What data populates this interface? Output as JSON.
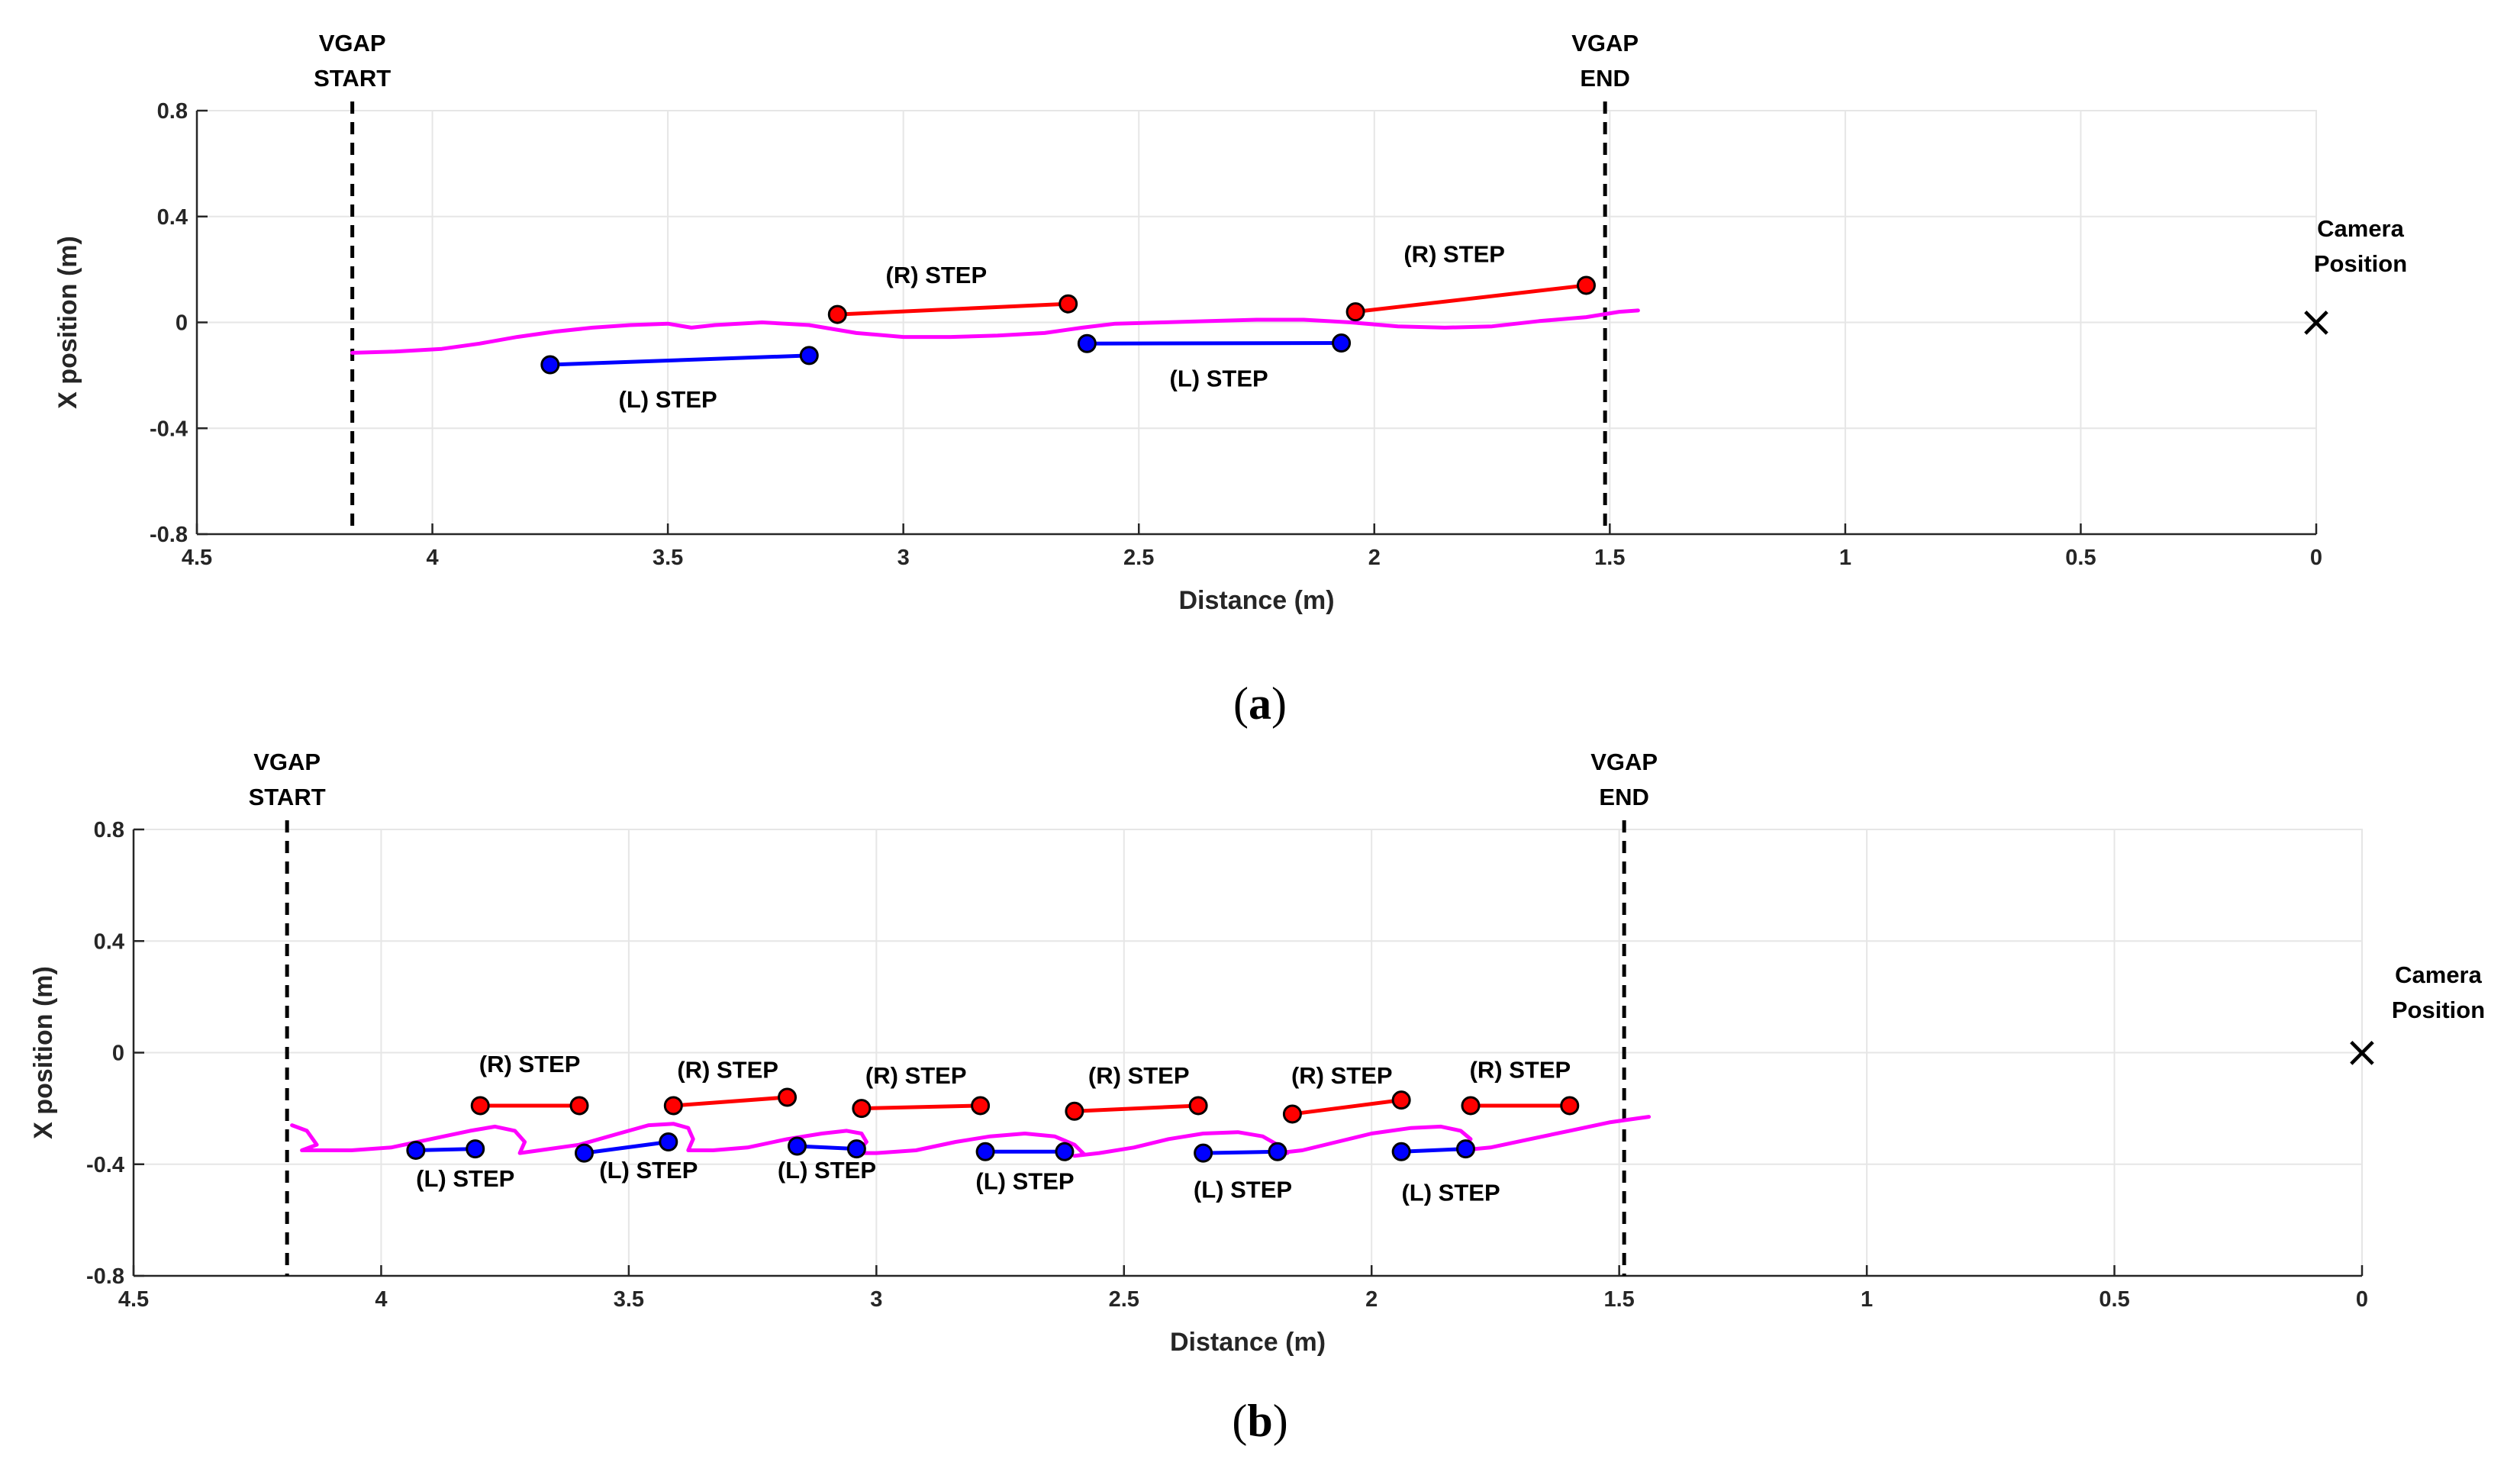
{
  "figure": {
    "colors": {
      "trajectory": "#ff00ff",
      "right_step": "#ff0000",
      "left_step": "#0000ff",
      "marker_edge": "#000000",
      "grid": "#e6e6e6",
      "axis": "#262626"
    },
    "panels": [
      {
        "caption_open": "(",
        "caption_letter": "a",
        "caption_close": ")",
        "chart_data": {
          "type": "line",
          "title": "",
          "xlabel": "Distance (m)",
          "ylabel": "X position (m)",
          "xlim": [
            4.5,
            0
          ],
          "x_reversed": true,
          "ylim": [
            -0.8,
            0.8
          ],
          "grid": true,
          "xticks": [
            4.5,
            4,
            3.5,
            3,
            2.5,
            2,
            1.5,
            1,
            0.5,
            0
          ],
          "xtick_labels": [
            "4.5",
            "4",
            "3.5",
            "3",
            "2.5",
            "2",
            "1.5",
            "1",
            "0.5",
            "0"
          ],
          "yticks": [
            0.8,
            0.4,
            0,
            -0.4,
            -0.8
          ],
          "ytick_labels": [
            "0.8",
            "0.4",
            "0",
            "-0.4",
            "-0.8"
          ],
          "vgap_start": {
            "x": 4.17,
            "line1": "VGAP",
            "line2": "START"
          },
          "vgap_end": {
            "x": 1.51,
            "line1": "VGAP",
            "line2": "END"
          },
          "camera": {
            "x": 0.0,
            "y": 0.0,
            "marker": "×",
            "line1": "Camera",
            "line2": "Position"
          },
          "trajectory": {
            "x": [
              4.17,
              4.08,
              3.98,
              3.9,
              3.82,
              3.74,
              3.66,
              3.58,
              3.5,
              3.45,
              3.4,
              3.3,
              3.2,
              3.1,
              3.0,
              2.9,
              2.8,
              2.7,
              2.62,
              2.55,
              2.45,
              2.35,
              2.25,
              2.15,
              2.05,
              1.95,
              1.85,
              1.75,
              1.65,
              1.55,
              1.48,
              1.44
            ],
            "y": [
              -0.115,
              -0.11,
              -0.1,
              -0.08,
              -0.055,
              -0.035,
              -0.02,
              -0.01,
              -0.005,
              -0.02,
              -0.01,
              0.0,
              -0.01,
              -0.04,
              -0.055,
              -0.055,
              -0.05,
              -0.04,
              -0.02,
              -0.005,
              0.0,
              0.005,
              0.01,
              0.01,
              0.0,
              -0.015,
              -0.02,
              -0.015,
              0.005,
              0.02,
              0.04,
              0.045
            ]
          },
          "right_steps": [
            {
              "x1": 3.14,
              "y1": 0.03,
              "x2": 2.65,
              "y2": 0.07,
              "label": "(R) STEP",
              "label_x": 2.93,
              "label_y": 0.18
            },
            {
              "x1": 2.04,
              "y1": 0.04,
              "x2": 1.55,
              "y2": 0.14,
              "label": "(R) STEP",
              "label_x": 1.83,
              "label_y": 0.26
            }
          ],
          "left_steps": [
            {
              "x1": 3.75,
              "y1": -0.16,
              "x2": 3.2,
              "y2": -0.125,
              "label": "(L) STEP",
              "label_x": 3.5,
              "label_y": -0.29
            },
            {
              "x1": 2.61,
              "y1": -0.08,
              "x2": 2.07,
              "y2": -0.078,
              "label": "(L) STEP",
              "label_x": 2.33,
              "label_y": -0.21
            }
          ]
        }
      },
      {
        "caption_open": "(",
        "caption_letter": "b",
        "caption_close": ")",
        "chart_data": {
          "type": "line",
          "title": "",
          "xlabel": "Distance (m)",
          "ylabel": "X position (m)",
          "xlim": [
            4.5,
            0
          ],
          "x_reversed": true,
          "ylim": [
            -0.8,
            0.8
          ],
          "grid": true,
          "xticks": [
            4.5,
            4,
            3.5,
            3,
            2.5,
            2,
            1.5,
            1,
            0.5,
            0
          ],
          "xtick_labels": [
            "4.5",
            "4",
            "3.5",
            "3",
            "2.5",
            "2",
            "1.5",
            "1",
            "0.5",
            "0"
          ],
          "yticks": [
            0.8,
            0.4,
            0,
            -0.4,
            -0.8
          ],
          "ytick_labels": [
            "0.8",
            "0.4",
            "0",
            "-0.4",
            "-0.8"
          ],
          "vgap_start": {
            "x": 4.19,
            "line1": "VGAP",
            "line2": "START"
          },
          "vgap_end": {
            "x": 1.49,
            "line1": "VGAP",
            "line2": "END"
          },
          "camera": {
            "x": 0.0,
            "y": 0.0,
            "marker": "×",
            "line1": "Camera",
            "line2": "Position"
          },
          "trajectory": {
            "x": [
              4.18,
              4.15,
              4.13,
              4.16,
              4.12,
              4.06,
              3.98,
              3.9,
              3.82,
              3.77,
              3.73,
              3.71,
              3.72,
              3.68,
              3.6,
              3.52,
              3.46,
              3.41,
              3.38,
              3.37,
              3.38,
              3.33,
              3.26,
              3.18,
              3.11,
              3.06,
              3.03,
              3.02,
              3.04,
              3.0,
              2.92,
              2.84,
              2.77,
              2.7,
              2.64,
              2.6,
              2.58,
              2.6,
              2.55,
              2.48,
              2.41,
              2.34,
              2.27,
              2.22,
              2.19,
              2.17,
              2.19,
              2.14,
              2.07,
              2.0,
              1.92,
              1.86,
              1.82,
              1.8,
              1.82,
              1.76,
              1.68,
              1.6,
              1.52,
              1.46,
              1.44
            ],
            "y": [
              -0.26,
              -0.28,
              -0.33,
              -0.35,
              -0.35,
              -0.35,
              -0.34,
              -0.31,
              -0.28,
              -0.265,
              -0.28,
              -0.32,
              -0.36,
              -0.35,
              -0.33,
              -0.29,
              -0.26,
              -0.255,
              -0.27,
              -0.31,
              -0.35,
              -0.35,
              -0.34,
              -0.31,
              -0.29,
              -0.28,
              -0.29,
              -0.32,
              -0.36,
              -0.36,
              -0.35,
              -0.32,
              -0.3,
              -0.29,
              -0.3,
              -0.33,
              -0.365,
              -0.37,
              -0.36,
              -0.34,
              -0.31,
              -0.29,
              -0.285,
              -0.3,
              -0.33,
              -0.36,
              -0.36,
              -0.35,
              -0.32,
              -0.29,
              -0.27,
              -0.265,
              -0.28,
              -0.31,
              -0.35,
              -0.34,
              -0.31,
              -0.28,
              -0.25,
              -0.235,
              -0.23
            ]
          },
          "right_steps": [
            {
              "x1": 3.8,
              "y1": -0.19,
              "x2": 3.6,
              "y2": -0.19,
              "label": "(R) STEP",
              "label_x": 3.7,
              "label_y": -0.04
            },
            {
              "x1": 3.41,
              "y1": -0.19,
              "x2": 3.18,
              "y2": -0.16,
              "label": "(R) STEP",
              "label_x": 3.3,
              "label_y": -0.06
            },
            {
              "x1": 3.03,
              "y1": -0.2,
              "x2": 2.79,
              "y2": -0.19,
              "label": "(R) STEP",
              "label_x": 2.92,
              "label_y": -0.08
            },
            {
              "x1": 2.6,
              "y1": -0.21,
              "x2": 2.35,
              "y2": -0.19,
              "label": "(R) STEP",
              "label_x": 2.47,
              "label_y": -0.08
            },
            {
              "x1": 2.16,
              "y1": -0.22,
              "x2": 1.94,
              "y2": -0.17,
              "label": "(R) STEP",
              "label_x": 2.06,
              "label_y": -0.08
            },
            {
              "x1": 1.8,
              "y1": -0.19,
              "x2": 1.6,
              "y2": -0.19,
              "label": "(R) STEP",
              "label_x": 1.7,
              "label_y": -0.06
            }
          ],
          "left_steps": [
            {
              "x1": 3.93,
              "y1": -0.35,
              "x2": 3.81,
              "y2": -0.345,
              "label": "(L) STEP",
              "label_x": 3.83,
              "label_y": -0.45
            },
            {
              "x1": 3.59,
              "y1": -0.36,
              "x2": 3.42,
              "y2": -0.32,
              "label": "(L) STEP",
              "label_x": 3.46,
              "label_y": -0.42
            },
            {
              "x1": 3.16,
              "y1": -0.335,
              "x2": 3.04,
              "y2": -0.345,
              "label": "(L) STEP",
              "label_x": 3.1,
              "label_y": -0.42
            },
            {
              "x1": 2.78,
              "y1": -0.355,
              "x2": 2.62,
              "y2": -0.355,
              "label": "(L) STEP",
              "label_x": 2.7,
              "label_y": -0.46
            },
            {
              "x1": 2.34,
              "y1": -0.36,
              "x2": 2.19,
              "y2": -0.355,
              "label": "(L) STEP",
              "label_x": 2.26,
              "label_y": -0.49
            },
            {
              "x1": 1.94,
              "y1": -0.355,
              "x2": 1.81,
              "y2": -0.345,
              "label": "(L) STEP",
              "label_x": 1.84,
              "label_y": -0.5
            }
          ]
        }
      }
    ]
  }
}
